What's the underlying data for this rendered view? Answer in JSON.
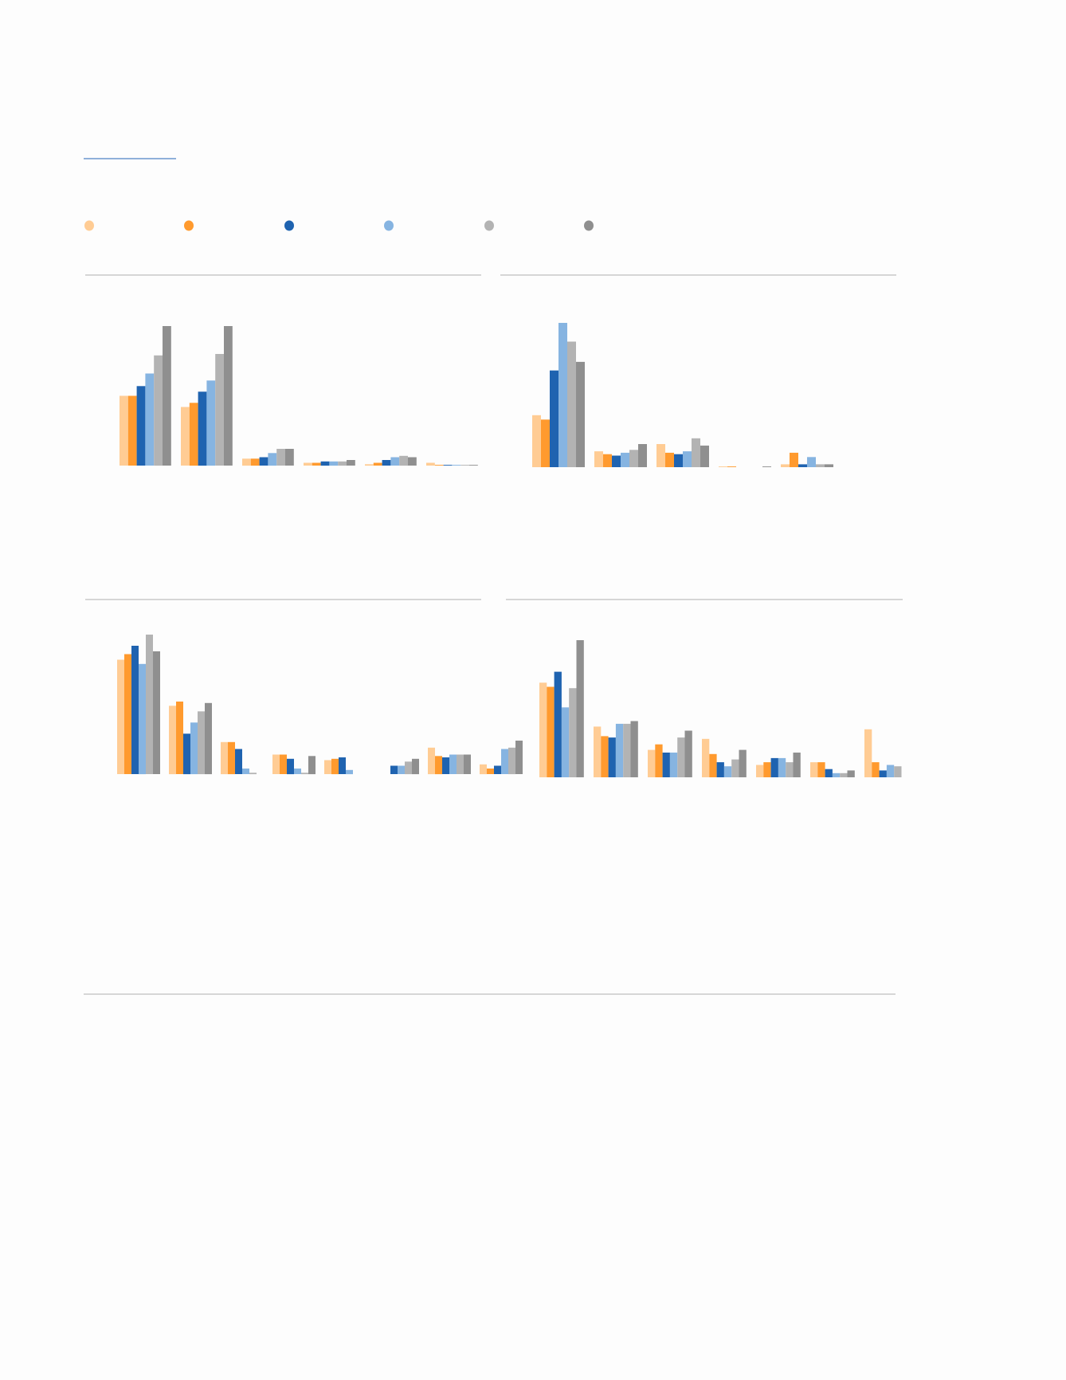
{
  "series_colors": [
    "#FFCC94",
    "#FF9A2E",
    "#1F63B0",
    "#86B4E1",
    "#B3B3B3",
    "#8F8F8F"
  ],
  "accent_color": "#8FB0DA",
  "rule_color": "#B0B0B0",
  "legend": {
    "placement": "top",
    "entries": 6
  },
  "chart_data": [
    {
      "type": "bar",
      "title": "",
      "grid": false,
      "values": [
        [
          50,
          50,
          57,
          66,
          79,
          100
        ],
        [
          42,
          45,
          53,
          61,
          80,
          100
        ],
        [
          5,
          5,
          6,
          9,
          12,
          12
        ],
        [
          2,
          2,
          3,
          3,
          3,
          4
        ],
        [
          1,
          2,
          4,
          6,
          7,
          6
        ],
        [
          2,
          0.5,
          0.5,
          0.5,
          0.5,
          0.5
        ]
      ]
    },
    {
      "type": "bar",
      "title": "",
      "grid": false,
      "values": [
        [
          36,
          33,
          67,
          100,
          87,
          73
        ],
        [
          11,
          9,
          8,
          10,
          12,
          16
        ],
        [
          16,
          10,
          9,
          11,
          20,
          15
        ],
        [
          0.5,
          0.5,
          0,
          0,
          0,
          0.5
        ],
        [
          2,
          10,
          2,
          7,
          2,
          2
        ]
      ]
    },
    {
      "type": "bar",
      "title": "",
      "grid": false,
      "values": [
        [
          82,
          86,
          92,
          79,
          100,
          88
        ],
        [
          49,
          52,
          29,
          37,
          45,
          51
        ],
        [
          23,
          23,
          18,
          4,
          1,
          0
        ],
        [
          14,
          14,
          11,
          4,
          1,
          13
        ],
        [
          10,
          11,
          12,
          3,
          0,
          0
        ],
        [
          0,
          0,
          6,
          6,
          9,
          11
        ],
        [
          19,
          13,
          12,
          14,
          14,
          14
        ],
        [
          7,
          4,
          6,
          18,
          19,
          24
        ]
      ]
    },
    {
      "type": "bar",
      "title": "",
      "grid": false,
      "values": [
        [
          69,
          66,
          77,
          51,
          65,
          100
        ],
        [
          37,
          30,
          29,
          39,
          39,
          41
        ],
        [
          20,
          24,
          18,
          18,
          29,
          34
        ],
        [
          28,
          17,
          11,
          8,
          13,
          20
        ],
        [
          9,
          11,
          14,
          14,
          11,
          18
        ],
        [
          11,
          11,
          6,
          3,
          3,
          5
        ],
        [
          35,
          11,
          5,
          9,
          8,
          0
        ]
      ]
    }
  ]
}
